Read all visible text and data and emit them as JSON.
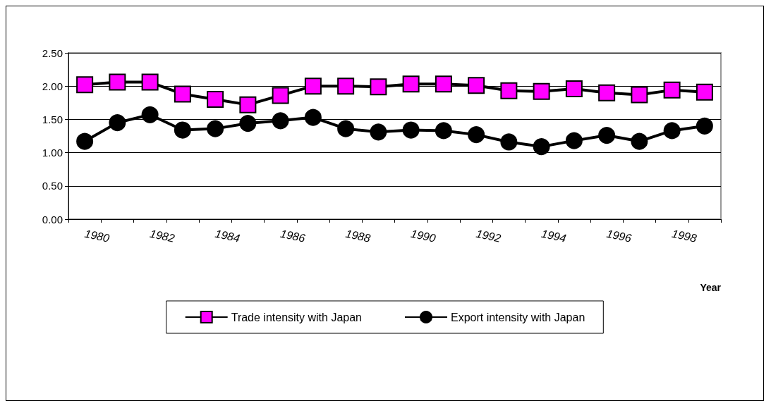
{
  "chart_data": {
    "type": "line",
    "xlabel": "Year",
    "categories": [
      "1980",
      null,
      "1982",
      null,
      "1984",
      null,
      "1986",
      null,
      "1988",
      null,
      "1990",
      null,
      "1992",
      null,
      "1994",
      null,
      "1996",
      null,
      "1998",
      null
    ],
    "series": [
      {
        "name": "Trade intensity with Japan",
        "color": "#ff00ff",
        "marker": "square",
        "values": [
          2.02,
          2.06,
          2.06,
          1.88,
          1.8,
          1.72,
          1.86,
          2.0,
          2.0,
          1.99,
          2.03,
          2.03,
          2.01,
          1.93,
          1.92,
          1.96,
          1.9,
          1.87,
          1.94,
          1.91
        ]
      },
      {
        "name": "Export intensity with Japan",
        "color": "#000000",
        "marker": "circle",
        "values": [
          1.17,
          1.45,
          1.57,
          1.34,
          1.36,
          1.44,
          1.48,
          1.53,
          1.36,
          1.31,
          1.34,
          1.33,
          1.27,
          1.16,
          1.09,
          1.18,
          1.26,
          1.17,
          1.33,
          1.4
        ]
      }
    ],
    "ylim": [
      0,
      2.5
    ],
    "yticks": [
      {
        "value": 0,
        "label": "0.00"
      },
      {
        "value": 0.5,
        "label": "0.50"
      },
      {
        "value": 1,
        "label": "1.00"
      },
      {
        "value": 1.5,
        "label": "1.50"
      },
      {
        "value": 2,
        "label": "2.00"
      },
      {
        "value": 2.5,
        "label": "2.50"
      }
    ],
    "grid": "y",
    "legend": "bottom"
  }
}
